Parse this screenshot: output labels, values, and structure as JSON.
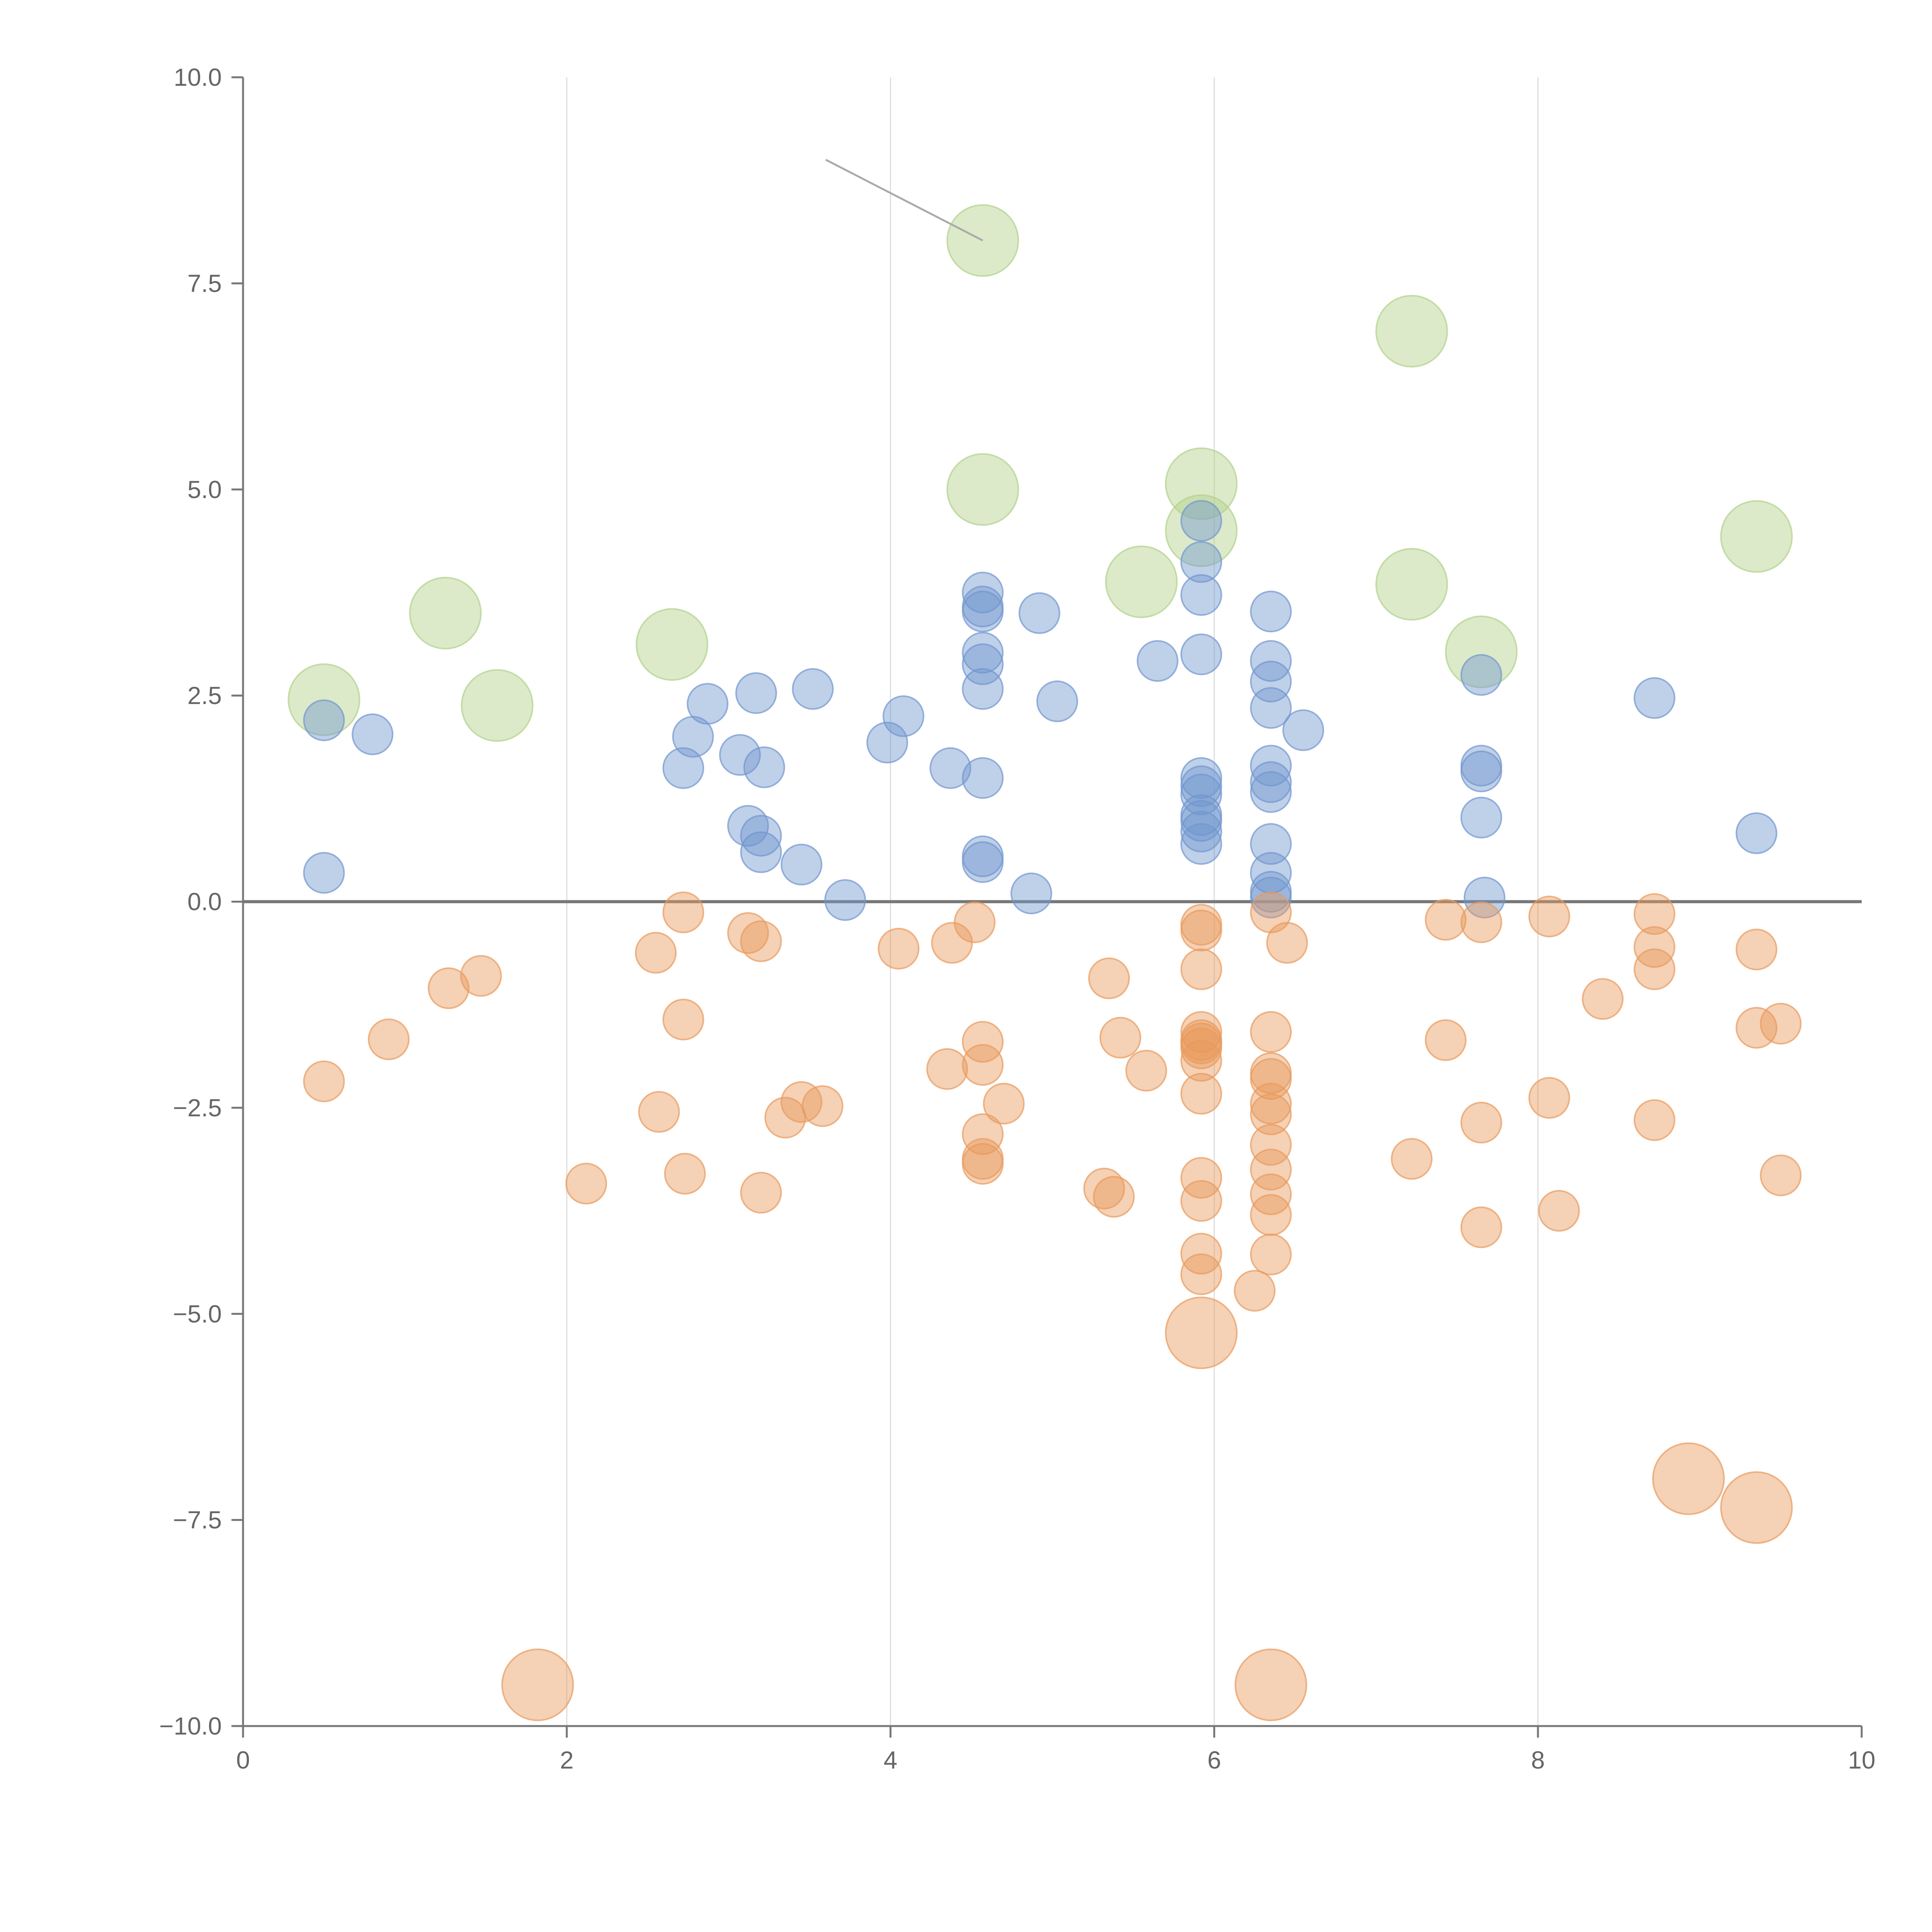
{
  "chart_data": {
    "type": "scatter",
    "title": "",
    "xlabel": "",
    "ylabel": "",
    "xlim": [
      0,
      10
    ],
    "ylim": [
      -10,
      10
    ],
    "x_ticks": [
      "0",
      "2",
      "4",
      "6",
      "8",
      "10"
    ],
    "y_ticks": [
      "10.0",
      "7.5",
      "5.0",
      "2.5",
      "0.0",
      "−2.5",
      "−5.0",
      "−7.5",
      "−10.0"
    ],
    "x_tick_values": [
      0,
      2,
      4,
      6,
      8,
      10
    ],
    "y_tick_values": [
      10,
      7.5,
      5,
      2.5,
      0,
      -2.5,
      -5,
      -7.5,
      -10
    ],
    "grid": "vertical",
    "zero_line": true,
    "colors": {
      "blue": "#7096cf",
      "orange": "#e89a5c",
      "green": "#b1d18a",
      "axis": "#777777",
      "grid": "#dddddd",
      "zero": "#777777",
      "annotation": "#aaaaaa"
    },
    "series": [
      {
        "key": "green",
        "size": "large",
        "points": [
          [
            0.5,
            2.45
          ],
          [
            1.25,
            3.5
          ],
          [
            1.57,
            2.38
          ],
          [
            2.65,
            3.12
          ],
          [
            4.57,
            8.02
          ],
          [
            4.57,
            5.0
          ],
          [
            5.55,
            3.88
          ],
          [
            5.92,
            5.07
          ],
          [
            5.92,
            4.5
          ],
          [
            7.22,
            6.92
          ],
          [
            7.22,
            3.85
          ],
          [
            7.65,
            3.03
          ],
          [
            9.35,
            4.43
          ]
        ]
      },
      {
        "key": "blue",
        "size": "small",
        "points": [
          [
            0.5,
            2.2
          ],
          [
            0.5,
            0.35
          ],
          [
            0.8,
            2.03
          ],
          [
            2.72,
            1.62
          ],
          [
            2.78,
            2.0
          ],
          [
            2.87,
            2.4
          ],
          [
            3.07,
            1.78
          ],
          [
            3.12,
            0.92
          ],
          [
            3.17,
            2.53
          ],
          [
            3.2,
            0.8
          ],
          [
            3.2,
            0.6
          ],
          [
            3.22,
            1.63
          ],
          [
            3.45,
            0.45
          ],
          [
            3.52,
            2.58
          ],
          [
            3.72,
            0.02
          ],
          [
            3.98,
            1.93
          ],
          [
            4.08,
            2.25
          ],
          [
            4.37,
            1.62
          ],
          [
            4.57,
            3.75
          ],
          [
            4.57,
            3.58
          ],
          [
            4.57,
            3.52
          ],
          [
            4.57,
            3.02
          ],
          [
            4.57,
            2.88
          ],
          [
            4.57,
            2.58
          ],
          [
            4.57,
            1.5
          ],
          [
            4.57,
            0.55
          ],
          [
            4.57,
            0.48
          ],
          [
            4.87,
            0.1
          ],
          [
            4.92,
            3.5
          ],
          [
            5.03,
            2.43
          ],
          [
            5.65,
            2.92
          ],
          [
            5.92,
            3.72
          ],
          [
            5.92,
            3.0
          ],
          [
            5.92,
            1.5
          ],
          [
            5.92,
            1.4
          ],
          [
            5.92,
            1.3
          ],
          [
            5.92,
            1.05
          ],
          [
            5.92,
            0.98
          ],
          [
            5.92,
            0.85
          ],
          [
            5.92,
            0.7
          ],
          [
            5.92,
            4.62
          ],
          [
            5.92,
            4.12
          ],
          [
            6.35,
            3.52
          ],
          [
            6.35,
            2.92
          ],
          [
            6.35,
            2.67
          ],
          [
            6.35,
            2.35
          ],
          [
            6.35,
            1.65
          ],
          [
            6.35,
            1.45
          ],
          [
            6.35,
            1.33
          ],
          [
            6.35,
            0.7
          ],
          [
            6.35,
            0.35
          ],
          [
            6.35,
            0.12
          ],
          [
            6.35,
            0.05
          ],
          [
            6.55,
            2.08
          ],
          [
            7.65,
            2.75
          ],
          [
            7.65,
            1.65
          ],
          [
            7.65,
            1.58
          ],
          [
            7.65,
            1.02
          ],
          [
            7.67,
            0.05
          ],
          [
            8.72,
            2.47
          ],
          [
            9.35,
            0.83
          ]
        ]
      },
      {
        "key": "orange",
        "size": "small",
        "points": [
          [
            0.5,
            -2.18
          ],
          [
            0.9,
            -1.67
          ],
          [
            1.27,
            -1.05
          ],
          [
            1.47,
            -0.9
          ],
          [
            2.12,
            -3.42
          ],
          [
            2.55,
            -0.62
          ],
          [
            2.57,
            -2.55
          ],
          [
            2.72,
            -0.13
          ],
          [
            2.72,
            -1.43
          ],
          [
            2.73,
            -3.3
          ],
          [
            3.12,
            -0.38
          ],
          [
            3.2,
            -0.48
          ],
          [
            3.2,
            -3.53
          ],
          [
            3.35,
            -2.62
          ],
          [
            3.45,
            -2.43
          ],
          [
            3.58,
            -2.48
          ],
          [
            4.05,
            -0.57
          ],
          [
            4.35,
            -2.03
          ],
          [
            4.38,
            -0.5
          ],
          [
            4.52,
            -0.25
          ],
          [
            4.57,
            -1.7
          ],
          [
            4.57,
            -1.98
          ],
          [
            4.57,
            -2.82
          ],
          [
            4.57,
            -3.12
          ],
          [
            4.57,
            -3.18
          ],
          [
            4.7,
            -2.45
          ],
          [
            5.32,
            -3.48
          ],
          [
            5.35,
            -0.93
          ],
          [
            5.38,
            -3.58
          ],
          [
            5.42,
            -1.65
          ],
          [
            5.58,
            -2.05
          ],
          [
            5.92,
            -0.28
          ],
          [
            5.92,
            -0.35
          ],
          [
            5.92,
            -0.82
          ],
          [
            5.92,
            -1.58
          ],
          [
            5.92,
            -1.68
          ],
          [
            5.92,
            -1.72
          ],
          [
            5.92,
            -1.78
          ],
          [
            5.92,
            -1.93
          ],
          [
            5.92,
            -2.33
          ],
          [
            5.92,
            -3.35
          ],
          [
            5.92,
            -3.63
          ],
          [
            5.92,
            -4.27
          ],
          [
            5.92,
            -4.52
          ],
          [
            5.92,
            -5.23
          ],
          [
            6.25,
            -4.72
          ],
          [
            6.35,
            -0.13
          ],
          [
            6.35,
            -1.58
          ],
          [
            6.35,
            -2.08
          ],
          [
            6.35,
            -2.15
          ],
          [
            6.35,
            -2.45
          ],
          [
            6.35,
            -2.58
          ],
          [
            6.35,
            -2.95
          ],
          [
            6.35,
            -3.25
          ],
          [
            6.35,
            -3.55
          ],
          [
            6.35,
            -3.8
          ],
          [
            6.35,
            -4.28
          ],
          [
            6.35,
            -9.5
          ],
          [
            6.45,
            -0.5
          ],
          [
            7.22,
            -3.12
          ],
          [
            7.43,
            -0.22
          ],
          [
            7.43,
            -1.68
          ],
          [
            7.65,
            -0.25
          ],
          [
            7.65,
            -2.68
          ],
          [
            7.65,
            -3.95
          ],
          [
            8.07,
            -0.18
          ],
          [
            8.07,
            -2.38
          ],
          [
            8.13,
            -3.75
          ],
          [
            8.4,
            -1.18
          ],
          [
            8.72,
            -0.15
          ],
          [
            8.72,
            -0.55
          ],
          [
            8.72,
            -0.82
          ],
          [
            8.72,
            -2.65
          ],
          [
            8.93,
            -7.0
          ],
          [
            9.35,
            -0.58
          ],
          [
            9.35,
            -1.53
          ],
          [
            9.35,
            -7.35
          ],
          [
            9.5,
            -1.48
          ],
          [
            9.5,
            -3.32
          ],
          [
            1.82,
            -9.5
          ]
        ]
      }
    ],
    "large_orange_points": [
      [
        5.92,
        -5.23
      ],
      [
        6.35,
        -9.5
      ],
      [
        8.93,
        -7.0
      ],
      [
        9.35,
        -7.35
      ],
      [
        1.82,
        -9.5
      ]
    ],
    "annotation_line": {
      "from": [
        3.6,
        9.0
      ],
      "to": [
        4.57,
        8.02
      ]
    }
  }
}
